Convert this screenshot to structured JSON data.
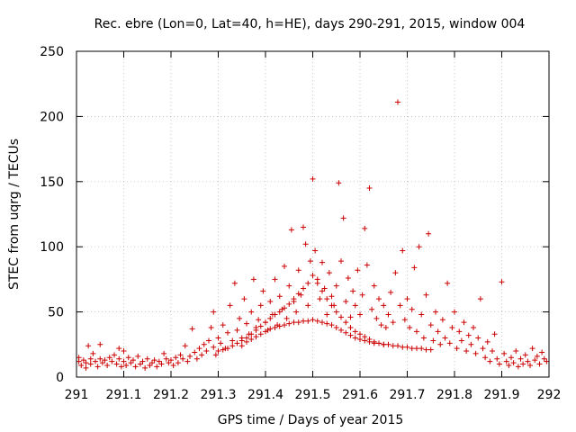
{
  "chart_data": {
    "type": "scatter",
    "title": "Rec. ebre (Lon=0, Lat=40, h=HE), days 290-291, 2015, window 004",
    "xlabel": "GPS time / Days of year 2015",
    "ylabel": "STEC from uqrg / TECUs",
    "xlim": [
      291,
      292
    ],
    "ylim": [
      0,
      250
    ],
    "x_ticks": [
      "291",
      "291.1",
      "291.2",
      "291.3",
      "291.4",
      "291.5",
      "291.6",
      "291.7",
      "291.8",
      "291.9",
      "292"
    ],
    "y_ticks": [
      "0",
      "50",
      "100",
      "150",
      "200",
      "250"
    ],
    "grid": true,
    "marker": "+",
    "color": "#cc0000",
    "series": [
      {
        "name": "STEC",
        "points": [
          [
            291.005,
            12
          ],
          [
            291.005,
            15
          ],
          [
            291.01,
            9
          ],
          [
            291.015,
            13
          ],
          [
            291.02,
            11
          ],
          [
            291.02,
            7
          ],
          [
            291.025,
            24
          ],
          [
            291.03,
            14
          ],
          [
            291.03,
            10
          ],
          [
            291.035,
            18
          ],
          [
            291.04,
            12
          ],
          [
            291.045,
            8
          ],
          [
            291.05,
            25
          ],
          [
            291.05,
            14
          ],
          [
            291.055,
            11
          ],
          [
            291.06,
            13
          ],
          [
            291.065,
            9
          ],
          [
            291.07,
            15
          ],
          [
            291.075,
            12
          ],
          [
            291.08,
            17
          ],
          [
            291.085,
            10
          ],
          [
            291.09,
            22
          ],
          [
            291.09,
            14
          ],
          [
            291.095,
            8
          ],
          [
            291.1,
            12
          ],
          [
            291.1,
            20
          ],
          [
            291.105,
            9
          ],
          [
            291.11,
            15
          ],
          [
            291.115,
            11
          ],
          [
            291.12,
            13
          ],
          [
            291.125,
            8
          ],
          [
            291.13,
            16
          ],
          [
            291.135,
            10
          ],
          [
            291.14,
            12
          ],
          [
            291.145,
            7
          ],
          [
            291.15,
            14
          ],
          [
            291.155,
            9
          ],
          [
            291.16,
            11
          ],
          [
            291.165,
            13
          ],
          [
            291.17,
            8
          ],
          [
            291.175,
            12
          ],
          [
            291.18,
            10
          ],
          [
            291.185,
            18
          ],
          [
            291.19,
            14
          ],
          [
            291.195,
            11
          ],
          [
            291.2,
            13
          ],
          [
            291.205,
            9
          ],
          [
            291.21,
            15
          ],
          [
            291.215,
            11
          ],
          [
            291.22,
            17
          ],
          [
            291.225,
            14
          ],
          [
            291.23,
            24
          ],
          [
            291.235,
            12
          ],
          [
            291.24,
            16
          ],
          [
            291.245,
            37
          ],
          [
            291.25,
            19
          ],
          [
            291.255,
            14
          ],
          [
            291.26,
            22
          ],
          [
            291.265,
            17
          ],
          [
            291.27,
            25
          ],
          [
            291.275,
            20
          ],
          [
            291.28,
            28
          ],
          [
            291.285,
            38
          ],
          [
            291.29,
            23
          ],
          [
            291.29,
            50
          ],
          [
            291.295,
            17
          ],
          [
            291.3,
            30
          ],
          [
            291.305,
            26
          ],
          [
            291.31,
            40
          ],
          [
            291.315,
            22
          ],
          [
            291.32,
            34
          ],
          [
            291.325,
            55
          ],
          [
            291.33,
            28
          ],
          [
            291.335,
            72
          ],
          [
            291.34,
            36
          ],
          [
            291.345,
            45
          ],
          [
            291.35,
            30
          ],
          [
            291.355,
            60
          ],
          [
            291.36,
            41
          ],
          [
            291.365,
            33
          ],
          [
            291.37,
            50
          ],
          [
            291.375,
            75
          ],
          [
            291.38,
            38
          ],
          [
            291.385,
            44
          ],
          [
            291.39,
            55
          ],
          [
            291.395,
            66
          ],
          [
            291.4,
            42
          ],
          [
            291.405,
            36
          ],
          [
            291.41,
            58
          ],
          [
            291.415,
            48
          ],
          [
            291.42,
            75
          ],
          [
            291.425,
            40
          ],
          [
            291.43,
            62
          ],
          [
            291.435,
            52
          ],
          [
            291.44,
            85
          ],
          [
            291.445,
            45
          ],
          [
            291.45,
            70
          ],
          [
            291.455,
            113
          ],
          [
            291.46,
            58
          ],
          [
            291.465,
            50
          ],
          [
            291.47,
            82
          ],
          [
            291.475,
            63
          ],
          [
            291.48,
            115
          ],
          [
            291.485,
            102
          ],
          [
            291.49,
            55
          ],
          [
            291.495,
            89
          ],
          [
            291.5,
            152
          ],
          [
            291.505,
            97
          ],
          [
            291.51,
            75
          ],
          [
            291.515,
            60
          ],
          [
            291.52,
            88
          ],
          [
            291.525,
            68
          ],
          [
            291.53,
            48
          ],
          [
            291.535,
            80
          ],
          [
            291.54,
            62
          ],
          [
            291.545,
            55
          ],
          [
            291.55,
            70
          ],
          [
            291.555,
            149
          ],
          [
            291.56,
            89
          ],
          [
            291.565,
            122
          ],
          [
            291.57,
            58
          ],
          [
            291.575,
            76
          ],
          [
            291.58,
            46
          ],
          [
            291.585,
            66
          ],
          [
            291.59,
            55
          ],
          [
            291.595,
            82
          ],
          [
            291.6,
            48
          ],
          [
            291.605,
            63
          ],
          [
            291.61,
            114
          ],
          [
            291.615,
            86
          ],
          [
            291.62,
            145
          ],
          [
            291.625,
            52
          ],
          [
            291.63,
            70
          ],
          [
            291.635,
            45
          ],
          [
            291.64,
            60
          ],
          [
            291.645,
            40
          ],
          [
            291.65,
            55
          ],
          [
            291.655,
            38
          ],
          [
            291.66,
            48
          ],
          [
            291.665,
            65
          ],
          [
            291.67,
            42
          ],
          [
            291.675,
            80
          ],
          [
            291.68,
            211
          ],
          [
            291.685,
            55
          ],
          [
            291.69,
            97
          ],
          [
            291.695,
            44
          ],
          [
            291.7,
            60
          ],
          [
            291.705,
            38
          ],
          [
            291.71,
            52
          ],
          [
            291.715,
            84
          ],
          [
            291.72,
            35
          ],
          [
            291.725,
            100
          ],
          [
            291.73,
            48
          ],
          [
            291.735,
            30
          ],
          [
            291.74,
            63
          ],
          [
            291.745,
            110
          ],
          [
            291.75,
            40
          ],
          [
            291.755,
            28
          ],
          [
            291.76,
            50
          ],
          [
            291.765,
            35
          ],
          [
            291.77,
            25
          ],
          [
            291.775,
            44
          ],
          [
            291.78,
            30
          ],
          [
            291.785,
            72
          ],
          [
            291.79,
            26
          ],
          [
            291.795,
            38
          ],
          [
            291.8,
            50
          ],
          [
            291.805,
            22
          ],
          [
            291.81,
            35
          ],
          [
            291.815,
            28
          ],
          [
            291.82,
            42
          ],
          [
            291.825,
            20
          ],
          [
            291.83,
            32
          ],
          [
            291.835,
            25
          ],
          [
            291.84,
            38
          ],
          [
            291.845,
            18
          ],
          [
            291.85,
            30
          ],
          [
            291.855,
            60
          ],
          [
            291.86,
            22
          ],
          [
            291.865,
            15
          ],
          [
            291.87,
            27
          ],
          [
            291.875,
            12
          ],
          [
            291.88,
            20
          ],
          [
            291.885,
            33
          ],
          [
            291.89,
            14
          ],
          [
            291.895,
            10
          ],
          [
            291.9,
            73
          ],
          [
            291.905,
            18
          ],
          [
            291.91,
            12
          ],
          [
            291.915,
            9
          ],
          [
            291.92,
            15
          ],
          [
            291.925,
            11
          ],
          [
            291.93,
            20
          ],
          [
            291.935,
            8
          ],
          [
            291.94,
            14
          ],
          [
            291.945,
            10
          ],
          [
            291.95,
            17
          ],
          [
            291.955,
            12
          ],
          [
            291.96,
            9
          ],
          [
            291.965,
            22
          ],
          [
            291.97,
            13
          ],
          [
            291.975,
            16
          ],
          [
            291.98,
            10
          ],
          [
            291.985,
            19
          ],
          [
            291.99,
            14
          ],
          [
            291.995,
            12
          ],
          [
            291.35,
            24
          ],
          [
            291.36,
            27
          ],
          [
            291.37,
            29
          ],
          [
            291.38,
            31
          ],
          [
            291.39,
            33
          ],
          [
            291.4,
            35
          ],
          [
            291.41,
            37
          ],
          [
            291.42,
            38
          ],
          [
            291.43,
            39
          ],
          [
            291.44,
            40
          ],
          [
            291.45,
            41
          ],
          [
            291.46,
            42
          ],
          [
            291.47,
            42
          ],
          [
            291.48,
            43
          ],
          [
            291.49,
            43
          ],
          [
            291.5,
            44
          ],
          [
            291.51,
            43
          ],
          [
            291.52,
            42
          ],
          [
            291.53,
            41
          ],
          [
            291.54,
            40
          ],
          [
            291.55,
            38
          ],
          [
            291.56,
            36
          ],
          [
            291.57,
            34
          ],
          [
            291.58,
            32
          ],
          [
            291.59,
            30
          ],
          [
            291.6,
            29
          ],
          [
            291.61,
            28
          ],
          [
            291.62,
            27
          ],
          [
            291.63,
            26
          ],
          [
            291.64,
            26
          ],
          [
            291.65,
            25
          ],
          [
            291.66,
            25
          ],
          [
            291.67,
            24
          ],
          [
            291.68,
            24
          ],
          [
            291.69,
            23
          ],
          [
            291.7,
            23
          ],
          [
            291.71,
            22
          ],
          [
            291.72,
            22
          ],
          [
            291.73,
            22
          ],
          [
            291.74,
            21
          ],
          [
            291.75,
            21
          ],
          [
            291.3,
            20
          ],
          [
            291.31,
            21
          ],
          [
            291.32,
            22
          ],
          [
            291.33,
            24
          ],
          [
            291.34,
            26
          ],
          [
            291.35,
            28
          ],
          [
            291.36,
            30
          ],
          [
            291.37,
            33
          ],
          [
            291.38,
            36
          ],
          [
            291.39,
            39
          ],
          [
            291.4,
            42
          ],
          [
            291.41,
            45
          ],
          [
            291.42,
            48
          ],
          [
            291.43,
            50
          ],
          [
            291.44,
            53
          ],
          [
            291.45,
            56
          ],
          [
            291.46,
            60
          ],
          [
            291.47,
            64
          ],
          [
            291.48,
            68
          ],
          [
            291.49,
            72
          ],
          [
            291.5,
            78
          ],
          [
            291.51,
            72
          ],
          [
            291.52,
            66
          ],
          [
            291.53,
            60
          ],
          [
            291.54,
            55
          ],
          [
            291.55,
            50
          ],
          [
            291.56,
            46
          ],
          [
            291.57,
            42
          ],
          [
            291.58,
            38
          ],
          [
            291.59,
            35
          ],
          [
            291.6,
            33
          ],
          [
            291.61,
            31
          ],
          [
            291.62,
            29
          ],
          [
            291.63,
            27
          ],
          [
            291.64,
            26
          ],
          [
            291.65,
            25
          ]
        ]
      }
    ]
  }
}
